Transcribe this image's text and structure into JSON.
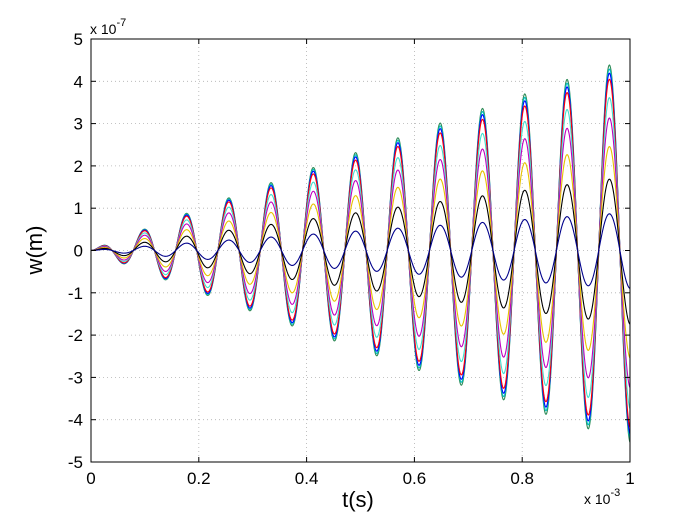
{
  "chart_data": {
    "type": "line",
    "title": "",
    "xlabel": "t(s)",
    "ylabel": "w(m)",
    "x_multiplier": {
      "base": "x 10",
      "exponent": "-3"
    },
    "y_multiplier": {
      "base": "x 10",
      "exponent": "-7"
    },
    "xlim": [
      0,
      1
    ],
    "ylim": [
      -5,
      5
    ],
    "x_ticks": [
      0,
      0.2,
      0.4,
      0.6,
      0.8,
      1
    ],
    "x_tick_labels": [
      "0",
      "0.2",
      "0.4",
      "0.6",
      "0.8",
      "1"
    ],
    "y_ticks": [
      -5,
      -4,
      -3,
      -2,
      -1,
      0,
      1,
      2,
      3,
      4,
      5
    ],
    "y_tick_labels": [
      "-5",
      "-4",
      "-3",
      "-2",
      "-1",
      "0",
      "1",
      "2",
      "3",
      "4",
      "5"
    ],
    "grid": true,
    "legend": "none",
    "oscillation_period": 0.0785,
    "series": [
      {
        "color": "#2e8b57",
        "peak_amplitude": 4.55
      },
      {
        "color": "#00bfbf",
        "peak_amplitude": 4.45
      },
      {
        "color": "#0000ff",
        "peak_amplitude": 4.35
      },
      {
        "color": "#ff0000",
        "peak_amplitude": 4.2
      },
      {
        "color": "#40e0d0",
        "peak_amplitude": 3.75
      },
      {
        "color": "#bf00bf",
        "peak_amplitude": 3.25
      },
      {
        "color": "#e6c200",
        "peak_amplitude": 2.55
      },
      {
        "color": "#000000",
        "peak_amplitude": 1.75
      },
      {
        "color": "#00008b",
        "peak_amplitude": 0.9
      }
    ]
  }
}
